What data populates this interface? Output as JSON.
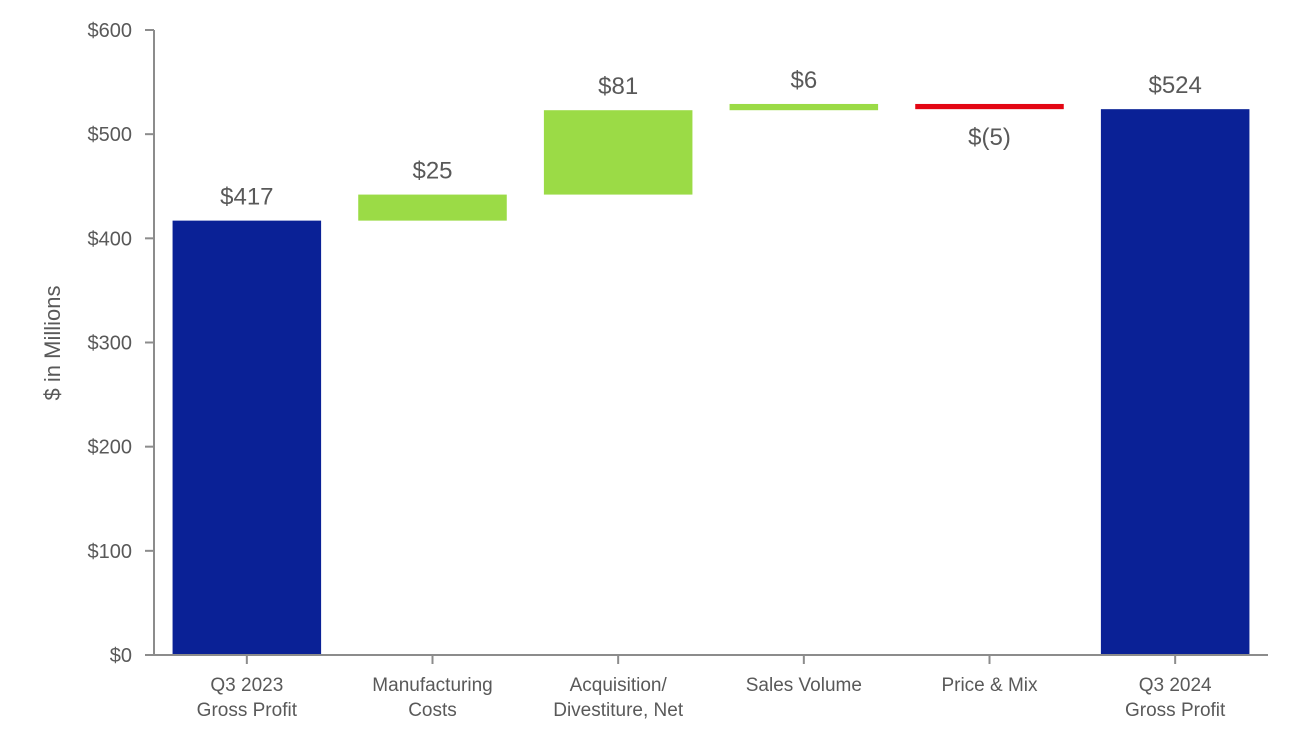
{
  "chart_data": {
    "type": "bar",
    "subtype": "waterfall",
    "categories": [
      [
        "Q3 2023",
        "Gross Profit"
      ],
      [
        "Manufacturing",
        "Costs"
      ],
      [
        "Acquisition/",
        "Divestiture, Net"
      ],
      [
        "Sales Volume"
      ],
      [
        "Price & Mix"
      ],
      [
        "Q3 2024",
        "Gross Profit"
      ]
    ],
    "values": [
      417,
      25,
      81,
      6,
      -5,
      524
    ],
    "kinds": [
      "total",
      "change",
      "change",
      "change",
      "change",
      "total"
    ],
    "data_labels": [
      "$417",
      "$25",
      "$81",
      "$6",
      "$(5)",
      "$524"
    ],
    "ylabel": "$ in Millions",
    "xlabel": "",
    "title": "",
    "ylim": [
      0,
      600
    ],
    "yticks": [
      0,
      100,
      200,
      300,
      400,
      500,
      600
    ],
    "ytick_labels": [
      "$0",
      "$100",
      "$200",
      "$300",
      "$400",
      "$500",
      "$600"
    ],
    "grid": false,
    "colors": {
      "total": "#0a2196",
      "increase": "#9bdb46",
      "decrease": "#e30613",
      "axis": "#8c8c8c"
    }
  }
}
